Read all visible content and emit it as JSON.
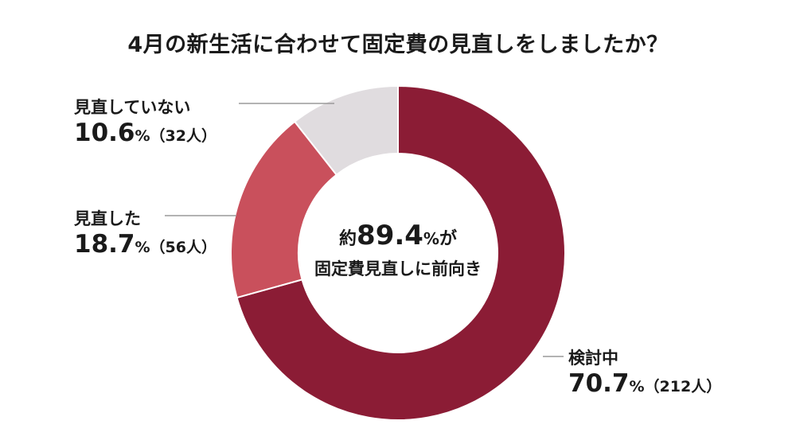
{
  "title": "4月の新生活に合わせて固定費の見直しをしましたか？",
  "chart_data": {
    "type": "pie",
    "donut": true,
    "categories": [
      "検討中",
      "見直した",
      "見直していない"
    ],
    "values": [
      70.7,
      18.7,
      10.6
    ],
    "counts": [
      "（212人）",
      "（56人）",
      "（32人）"
    ],
    "value_labels": [
      "70.7",
      "18.7",
      "10.6"
    ],
    "percent_sign": "%",
    "colors": [
      "#8b1c35",
      "#c9505c",
      "#e0dcdf"
    ],
    "center": {
      "prefix": "約",
      "value": "89.4",
      "suffix_pct": "%",
      "suffix": "が",
      "line2": "固定費見直しに前向き"
    }
  }
}
